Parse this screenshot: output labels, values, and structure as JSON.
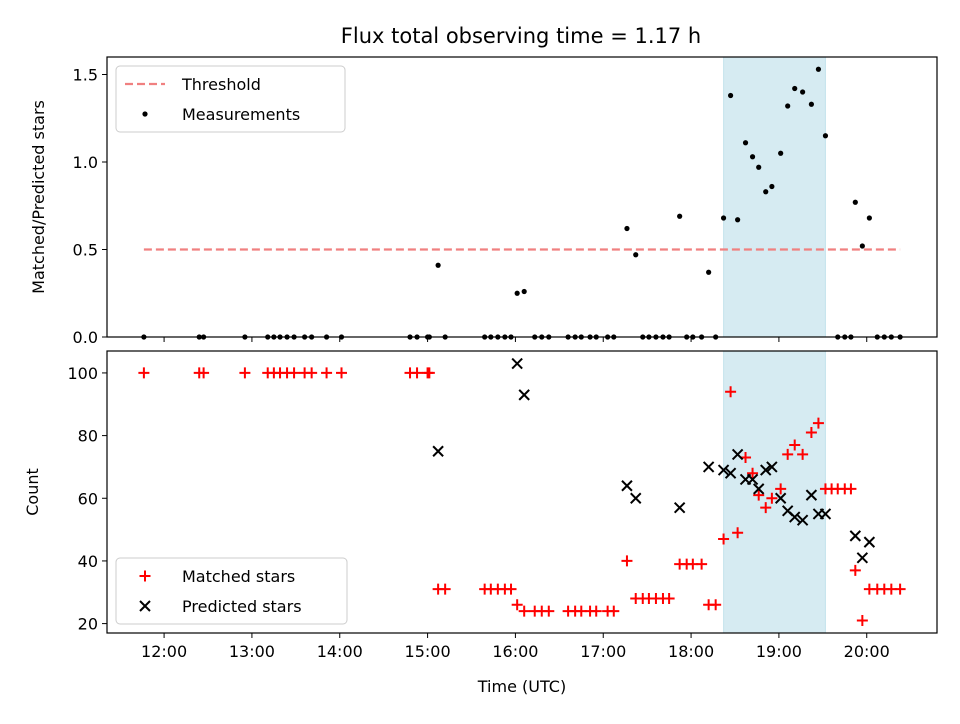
{
  "title": "Flux total observing time = 1.17 h",
  "chart_data": [
    {
      "type": "scatter",
      "ylabel": "Matched/Predicted stars",
      "xlabel": "",
      "xlim": [
        11.35,
        20.8
      ],
      "ylim": [
        0,
        1.6
      ],
      "yticks": [
        0.0,
        0.5,
        1.0,
        1.5
      ],
      "ytick_labels": [
        "0.0",
        "0.5",
        "1.0",
        "1.5"
      ],
      "shaded_span": {
        "x": [
          18.37,
          19.53
        ],
        "color": "#add8e6"
      },
      "legend": {
        "position": "top-left",
        "entries": [
          {
            "label": "Threshold",
            "marker": "dashed-line",
            "color": "#f08080"
          },
          {
            "label": "Measurements",
            "marker": "dot",
            "color": "#000000"
          }
        ]
      },
      "threshold": {
        "name": "Threshold",
        "y": 0.5,
        "x": [
          11.77,
          20.38
        ],
        "color": "#f08080",
        "style": "dashed"
      },
      "series": [
        {
          "name": "Measurements",
          "marker": "dot",
          "color": "#000000",
          "x": [
            11.77,
            12.4,
            12.45,
            12.92,
            13.18,
            13.25,
            13.32,
            13.4,
            13.48,
            13.6,
            13.68,
            13.85,
            14.02,
            14.8,
            14.88,
            15.0,
            15.02,
            15.12,
            15.2,
            15.65,
            15.72,
            15.8,
            15.88,
            15.95,
            16.02,
            16.1,
            16.22,
            16.3,
            16.38,
            16.6,
            16.68,
            16.75,
            16.85,
            16.92,
            17.05,
            17.12,
            17.27,
            17.37,
            17.45,
            17.52,
            17.6,
            17.68,
            17.75,
            17.87,
            17.95,
            18.02,
            18.12,
            18.2,
            18.28,
            18.37,
            18.45,
            18.53,
            18.62,
            18.7,
            18.77,
            18.85,
            18.92,
            19.02,
            19.1,
            19.18,
            19.27,
            19.37,
            19.45,
            19.53,
            19.67,
            19.75,
            19.82,
            19.87,
            19.95,
            20.03,
            20.12,
            20.2,
            20.28,
            20.38
          ],
          "y": [
            0.0,
            0.0,
            0.0,
            0.0,
            0.0,
            0.0,
            0.0,
            0.0,
            0.0,
            0.0,
            0.0,
            0.0,
            0.0,
            0.0,
            0.0,
            0.0,
            0.0,
            0.41,
            0.0,
            0.0,
            0.0,
            0.0,
            0.0,
            0.0,
            0.25,
            0.26,
            0.0,
            0.0,
            0.0,
            0.0,
            0.0,
            0.0,
            0.0,
            0.0,
            0.0,
            0.0,
            0.62,
            0.47,
            0.0,
            0.0,
            0.0,
            0.0,
            0.0,
            0.69,
            0.0,
            0.0,
            0.0,
            0.37,
            0.0,
            0.68,
            1.38,
            0.67,
            1.11,
            1.03,
            0.97,
            0.83,
            0.86,
            1.05,
            1.32,
            1.42,
            1.4,
            1.33,
            1.53,
            1.15,
            0.0,
            0.0,
            0.0,
            0.77,
            0.52,
            0.68,
            0.0,
            0.0,
            0.0,
            0.0
          ]
        }
      ]
    },
    {
      "type": "scatter",
      "ylabel": "Count",
      "xlabel": "Time (UTC)",
      "xlim": [
        11.35,
        20.8
      ],
      "ylim": [
        17,
        107
      ],
      "yticks": [
        20,
        40,
        60,
        80,
        100
      ],
      "ytick_labels": [
        "20",
        "40",
        "60",
        "80",
        "100"
      ],
      "xticks": [
        12,
        13,
        14,
        15,
        16,
        17,
        18,
        19,
        20
      ],
      "xtick_labels": [
        "12:00",
        "13:00",
        "14:00",
        "15:00",
        "16:00",
        "17:00",
        "18:00",
        "19:00",
        "20:00"
      ],
      "shaded_span": {
        "x": [
          18.37,
          19.53
        ],
        "color": "#add8e6"
      },
      "legend": {
        "position": "bottom-left",
        "entries": [
          {
            "label": "Matched stars",
            "marker": "plus",
            "color": "#ff0000"
          },
          {
            "label": "Predicted stars",
            "marker": "x",
            "color": "#000000"
          }
        ]
      },
      "series": [
        {
          "name": "Matched stars",
          "marker": "plus",
          "color": "#ff0000",
          "x": [
            11.77,
            12.4,
            12.45,
            12.92,
            13.18,
            13.25,
            13.32,
            13.4,
            13.48,
            13.6,
            13.68,
            13.85,
            14.02,
            14.8,
            14.88,
            15.0,
            15.02,
            15.12,
            15.2,
            15.65,
            15.72,
            15.8,
            15.88,
            15.95,
            16.02,
            16.1,
            16.22,
            16.3,
            16.38,
            16.6,
            16.68,
            16.75,
            16.85,
            16.92,
            17.05,
            17.12,
            17.27,
            17.37,
            17.45,
            17.52,
            17.6,
            17.68,
            17.75,
            17.87,
            17.95,
            18.02,
            18.12,
            18.2,
            18.28,
            18.37,
            18.45,
            18.53,
            18.62,
            18.7,
            18.77,
            18.85,
            18.92,
            19.02,
            19.1,
            19.18,
            19.27,
            19.37,
            19.45,
            19.53,
            19.6,
            19.67,
            19.75,
            19.82,
            19.87,
            19.95,
            20.03,
            20.12,
            20.2,
            20.28,
            20.38
          ],
          "y": [
            100,
            100,
            100,
            100,
            100,
            100,
            100,
            100,
            100,
            100,
            100,
            100,
            100,
            100,
            100,
            100,
            100,
            31,
            31,
            31,
            31,
            31,
            31,
            31,
            26,
            24,
            24,
            24,
            24,
            24,
            24,
            24,
            24,
            24,
            24,
            24,
            40,
            28,
            28,
            28,
            28,
            28,
            28,
            39,
            39,
            39,
            39,
            26,
            26,
            47,
            94,
            49,
            73,
            68,
            61,
            57,
            60,
            63,
            74,
            77,
            74,
            81,
            84,
            63,
            63,
            63,
            63,
            63,
            37,
            21,
            31,
            31,
            31,
            31,
            31
          ]
        },
        {
          "name": "Predicted stars",
          "marker": "x",
          "color": "#000000",
          "x": [
            15.12,
            16.02,
            16.1,
            17.27,
            17.37,
            17.87,
            18.2,
            18.37,
            18.45,
            18.53,
            18.62,
            18.7,
            18.77,
            18.85,
            18.92,
            19.02,
            19.1,
            19.18,
            19.27,
            19.37,
            19.45,
            19.53,
            19.87,
            19.95,
            20.03
          ],
          "y": [
            75,
            103,
            93,
            64,
            60,
            57,
            70,
            69,
            68,
            74,
            66,
            66,
            63,
            69,
            70,
            60,
            56,
            54,
            53,
            61,
            55,
            55,
            48,
            41,
            46
          ]
        }
      ]
    }
  ]
}
